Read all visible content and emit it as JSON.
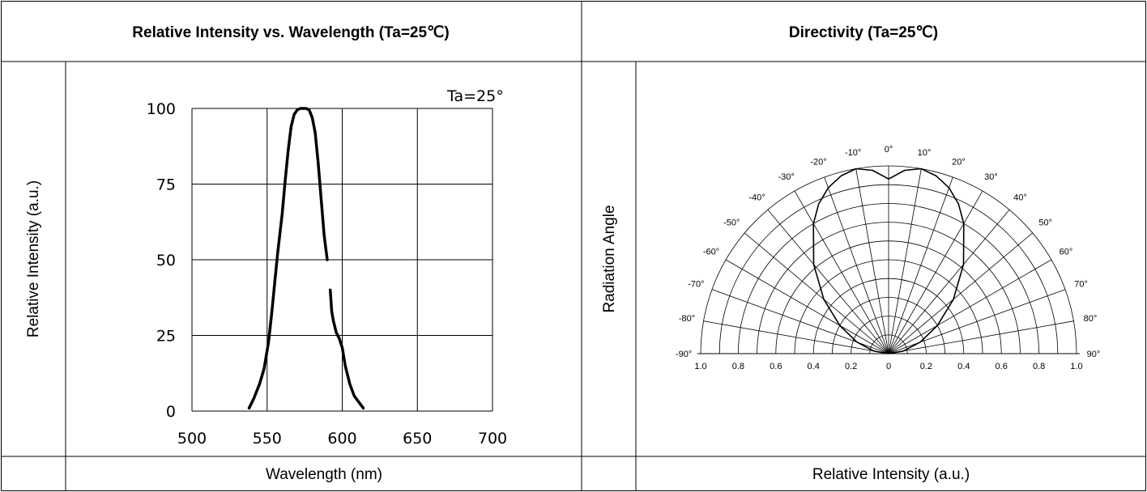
{
  "headers": {
    "left": "Relative Intensity vs. Wavelength (Ta=25℃)",
    "right": "Directivity (Ta=25℃)"
  },
  "left_panel": {
    "ylabel": "Relative Intensity (a.u.)",
    "xlabel": "Wavelength (nm)"
  },
  "right_panel": {
    "ylabel": "Radiation Angle",
    "xlabel": "Relative Intensity (a.u.)"
  },
  "chart_data": [
    {
      "type": "line",
      "annotation": "Ta=25°",
      "xlim": [
        500,
        700
      ],
      "ylim": [
        0,
        100
      ],
      "xticks": [
        "500",
        "550",
        "600",
        "650",
        "700"
      ],
      "yticks": [
        "0",
        "25",
        "50",
        "75",
        "100"
      ],
      "grid": true,
      "series": [
        {
          "x": [
            538,
            541,
            545,
            548,
            550,
            551,
            553,
            555,
            557,
            560,
            562,
            564,
            566,
            568,
            570,
            572,
            574,
            576,
            578,
            580,
            582,
            584,
            586,
            588,
            590,
            591,
            592,
            593,
            594,
            596,
            598,
            600,
            602,
            605,
            608,
            611,
            614
          ],
          "y": [
            1,
            4,
            9,
            14,
            20,
            23,
            32,
            42,
            52,
            65,
            76,
            86,
            94,
            98,
            99.5,
            100,
            100,
            100,
            99.5,
            97,
            92,
            82,
            70,
            58,
            50,
            null,
            40,
            33,
            30,
            26,
            24,
            21,
            15,
            9,
            5,
            3,
            1
          ]
        }
      ]
    },
    {
      "type": "polar",
      "angle_ticks": [
        "-90°",
        "-80°",
        "-70°",
        "-60°",
        "-50°",
        "-40°",
        "-30°",
        "-20°",
        "-10°",
        "0°",
        "10°",
        "20°",
        "30°",
        "40°",
        "50°",
        "60°",
        "70°",
        "80°",
        "90°"
      ],
      "radial_ticks": [
        "1.0",
        "0.8",
        "0.6",
        "0.4",
        "0.2",
        "0",
        "0.2",
        "0.4",
        "0.6",
        "0.8",
        "1.0"
      ],
      "series": [
        {
          "angle": [
            -90,
            -80,
            -70,
            -60,
            -50,
            -40,
            -30,
            -25,
            -20,
            -15,
            -10,
            -5,
            0,
            5,
            10,
            15,
            20,
            25,
            30,
            40,
            50,
            60,
            70,
            80,
            90
          ],
          "r": [
            0,
            0.08,
            0.18,
            0.3,
            0.45,
            0.62,
            0.8,
            0.88,
            0.94,
            0.98,
            1.0,
            0.98,
            0.93,
            0.98,
            1.0,
            0.98,
            0.94,
            0.88,
            0.8,
            0.62,
            0.45,
            0.3,
            0.18,
            0.08,
            0
          ]
        }
      ]
    }
  ]
}
